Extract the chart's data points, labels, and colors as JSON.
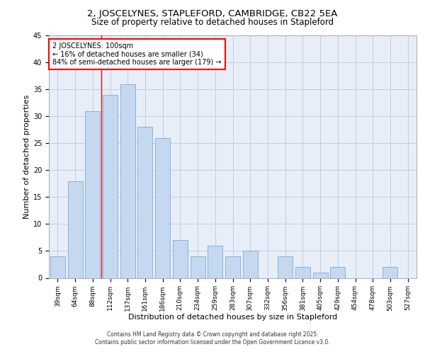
{
  "title_line1": "2, JOSCELYNES, STAPLEFORD, CAMBRIDGE, CB22 5EA",
  "title_line2": "Size of property relative to detached houses in Stapleford",
  "xlabel": "Distribution of detached houses by size in Stapleford",
  "ylabel": "Number of detached properties",
  "categories": [
    "39sqm",
    "64sqm",
    "88sqm",
    "112sqm",
    "137sqm",
    "161sqm",
    "186sqm",
    "210sqm",
    "234sqm",
    "259sqm",
    "283sqm",
    "307sqm",
    "332sqm",
    "356sqm",
    "381sqm",
    "405sqm",
    "429sqm",
    "454sqm",
    "478sqm",
    "503sqm",
    "527sqm"
  ],
  "values": [
    4,
    18,
    31,
    34,
    36,
    28,
    26,
    7,
    4,
    6,
    4,
    5,
    0,
    4,
    2,
    1,
    2,
    0,
    0,
    2,
    0
  ],
  "bar_color": "#c5d8f0",
  "bar_edgecolor": "#7aadd4",
  "ylim": [
    0,
    45
  ],
  "yticks": [
    0,
    5,
    10,
    15,
    20,
    25,
    30,
    35,
    40,
    45
  ],
  "grid_color": "#c0cfe0",
  "background_color": "#e8eef8",
  "annotation_text": "2 JOSCELYNES: 100sqm\n← 16% of detached houses are smaller (34)\n84% of semi-detached houses are larger (179) →",
  "vline_x": 2.5,
  "footer_line1": "Contains HM Land Registry data © Crown copyright and database right 2025.",
  "footer_line2": "Contains public sector information licensed under the Open Government Licence v3.0.",
  "title_fontsize": 9.5,
  "subtitle_fontsize": 8.5,
  "xlabel_fontsize": 8,
  "ylabel_fontsize": 8,
  "tick_fontsize": 6.5,
  "annotation_fontsize": 7,
  "footer_fontsize": 5.5
}
